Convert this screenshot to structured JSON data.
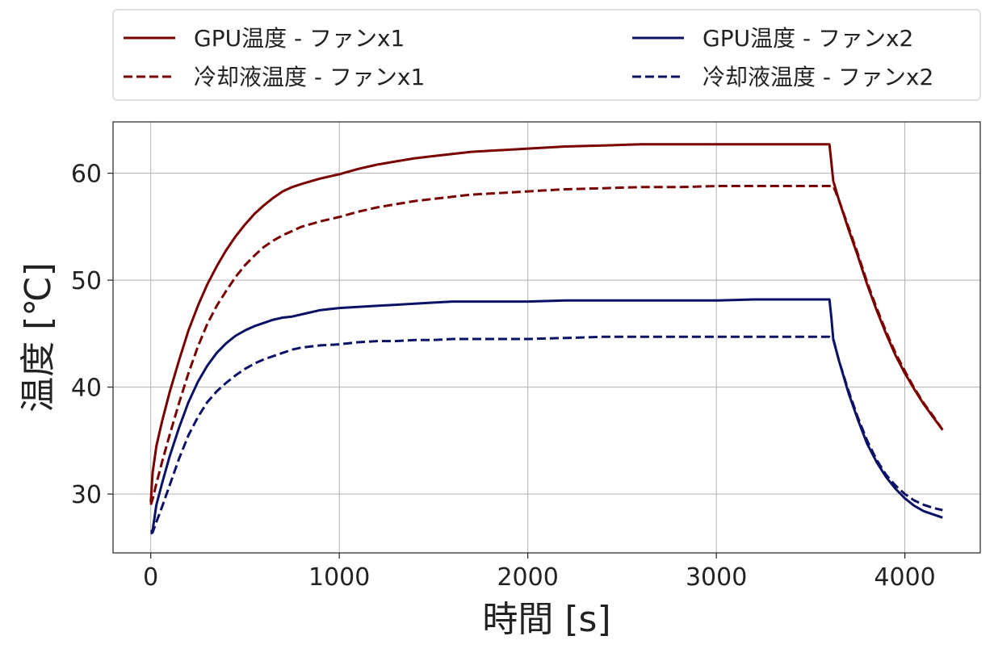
{
  "chart_data": {
    "type": "line",
    "xlabel": "時間 [s]",
    "ylabel": "温度 [℃]",
    "xlim": [
      -200,
      4400
    ],
    "ylim": [
      24.5,
      64.8
    ],
    "xticks": [
      0,
      1000,
      2000,
      3000,
      4000
    ],
    "yticks": [
      30,
      40,
      50,
      60
    ],
    "grid": true,
    "legend_position": "top",
    "series": [
      {
        "name": "GPU温度 - ファンx1",
        "color": "#7a0000",
        "style": "solid",
        "x": [
          0,
          10,
          30,
          60,
          100,
          150,
          200,
          250,
          300,
          350,
          400,
          450,
          500,
          550,
          600,
          650,
          700,
          750,
          800,
          900,
          1000,
          1100,
          1200,
          1300,
          1400,
          1500,
          1600,
          1700,
          1800,
          1900,
          2000,
          2200,
          2400,
          2600,
          2800,
          3000,
          3200,
          3400,
          3500,
          3580,
          3600,
          3610,
          3620,
          3650,
          3700,
          3750,
          3800,
          3850,
          3900,
          3950,
          4000,
          4050,
          4100,
          4150,
          4200
        ],
        "y": [
          29.2,
          32.0,
          34.5,
          36.8,
          39.5,
          42.5,
          45.3,
          47.6,
          49.6,
          51.3,
          52.8,
          54.1,
          55.2,
          56.2,
          57.0,
          57.7,
          58.3,
          58.7,
          59.0,
          59.5,
          59.9,
          60.4,
          60.8,
          61.1,
          61.4,
          61.6,
          61.8,
          62.0,
          62.1,
          62.2,
          62.3,
          62.5,
          62.6,
          62.7,
          62.7,
          62.7,
          62.7,
          62.7,
          62.7,
          62.7,
          62.7,
          61.0,
          59.3,
          57.5,
          54.8,
          52.3,
          49.6,
          47.2,
          45.0,
          43.0,
          41.3,
          39.8,
          38.4,
          37.2,
          36.0
        ]
      },
      {
        "name": "冷却液温度 - ファンx1",
        "color": "#7a0000",
        "style": "dashed",
        "x": [
          0,
          10,
          30,
          60,
          100,
          150,
          200,
          250,
          300,
          350,
          400,
          450,
          500,
          550,
          600,
          650,
          700,
          750,
          800,
          900,
          1000,
          1100,
          1200,
          1300,
          1400,
          1500,
          1600,
          1700,
          1800,
          1900,
          2000,
          2200,
          2400,
          2600,
          2800,
          3000,
          3200,
          3400,
          3500,
          3600,
          3620,
          3650,
          3700,
          3750,
          3800,
          3850,
          3900,
          3950,
          4000,
          4050,
          4100,
          4150,
          4200
        ],
        "y": [
          29.0,
          29.5,
          31.0,
          33.0,
          35.5,
          38.5,
          41.3,
          43.8,
          45.9,
          47.6,
          49.0,
          50.3,
          51.4,
          52.3,
          53.1,
          53.7,
          54.2,
          54.6,
          55.0,
          55.5,
          55.9,
          56.4,
          56.8,
          57.1,
          57.4,
          57.6,
          57.8,
          58.0,
          58.1,
          58.2,
          58.3,
          58.5,
          58.6,
          58.7,
          58.7,
          58.8,
          58.8,
          58.8,
          58.8,
          58.8,
          58.8,
          57.5,
          55.0,
          52.5,
          49.8,
          47.4,
          45.2,
          43.2,
          41.5,
          39.9,
          38.5,
          37.3,
          36.0
        ]
      },
      {
        "name": "GPU温度 - ファンx2",
        "color": "#0a1166",
        "style": "solid",
        "x": [
          0,
          10,
          30,
          60,
          100,
          150,
          200,
          250,
          300,
          350,
          400,
          450,
          500,
          550,
          600,
          650,
          700,
          750,
          800,
          900,
          1000,
          1100,
          1200,
          1300,
          1400,
          1500,
          1600,
          1700,
          1800,
          2000,
          2200,
          2400,
          2600,
          2800,
          3000,
          3200,
          3400,
          3500,
          3600,
          3610,
          3620,
          3650,
          3700,
          3750,
          3800,
          3850,
          3900,
          3950,
          4000,
          4050,
          4100,
          4150,
          4200
        ],
        "y": [
          26.5,
          26.6,
          29.0,
          31.0,
          33.5,
          36.2,
          38.6,
          40.5,
          42.0,
          43.2,
          44.1,
          44.8,
          45.3,
          45.7,
          46.0,
          46.3,
          46.5,
          46.6,
          46.8,
          47.2,
          47.4,
          47.5,
          47.6,
          47.7,
          47.8,
          47.9,
          48.0,
          48.0,
          48.0,
          48.0,
          48.1,
          48.1,
          48.1,
          48.1,
          48.1,
          48.2,
          48.2,
          48.2,
          48.2,
          46.5,
          44.5,
          42.5,
          39.5,
          37.0,
          34.7,
          33.0,
          31.6,
          30.5,
          29.6,
          28.9,
          28.4,
          28.1,
          27.8
        ]
      },
      {
        "name": "冷却液温度 - ファンx2",
        "color": "#0a1166",
        "style": "dashed",
        "x": [
          0,
          10,
          30,
          60,
          100,
          150,
          200,
          250,
          300,
          350,
          400,
          450,
          500,
          550,
          600,
          650,
          700,
          750,
          800,
          900,
          1000,
          1100,
          1200,
          1300,
          1400,
          1500,
          1600,
          1700,
          1800,
          2000,
          2200,
          2400,
          2600,
          2800,
          3000,
          3200,
          3400,
          3500,
          3600,
          3620,
          3650,
          3700,
          3750,
          3800,
          3850,
          3900,
          3950,
          4000,
          4050,
          4100,
          4150,
          4200
        ],
        "y": [
          26.3,
          26.4,
          27.4,
          28.8,
          30.8,
          33.3,
          35.5,
          37.2,
          38.6,
          39.6,
          40.4,
          41.1,
          41.7,
          42.2,
          42.6,
          42.9,
          43.2,
          43.5,
          43.7,
          43.9,
          44.0,
          44.2,
          44.3,
          44.3,
          44.4,
          44.4,
          44.5,
          44.5,
          44.5,
          44.5,
          44.6,
          44.7,
          44.7,
          44.7,
          44.7,
          44.7,
          44.7,
          44.7,
          44.7,
          44.5,
          42.5,
          39.7,
          37.2,
          35.0,
          33.2,
          31.8,
          30.8,
          30.0,
          29.4,
          29.0,
          28.7,
          28.5
        ]
      }
    ]
  }
}
